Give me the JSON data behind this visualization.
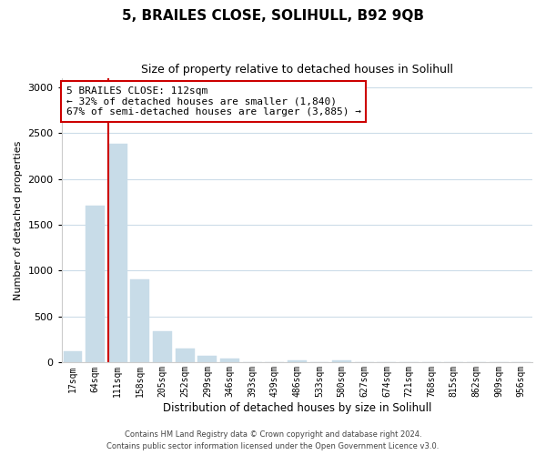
{
  "title": "5, BRAILES CLOSE, SOLIHULL, B92 9QB",
  "subtitle": "Size of property relative to detached houses in Solihull",
  "xlabel": "Distribution of detached houses by size in Solihull",
  "ylabel": "Number of detached properties",
  "bar_labels": [
    "17sqm",
    "64sqm",
    "111sqm",
    "158sqm",
    "205sqm",
    "252sqm",
    "299sqm",
    "346sqm",
    "393sqm",
    "439sqm",
    "486sqm",
    "533sqm",
    "580sqm",
    "627sqm",
    "674sqm",
    "721sqm",
    "768sqm",
    "815sqm",
    "862sqm",
    "909sqm",
    "956sqm"
  ],
  "bar_values": [
    120,
    1710,
    2380,
    910,
    340,
    155,
    70,
    40,
    0,
    0,
    25,
    0,
    20,
    0,
    0,
    0,
    0,
    0,
    0,
    0,
    0
  ],
  "bar_color": "#c8dce8",
  "bar_edge_color": "#c8dce8",
  "property_line_index": 2,
  "property_line_color": "#cc0000",
  "annotation_text": "5 BRAILES CLOSE: 112sqm\n← 32% of detached houses are smaller (1,840)\n67% of semi-detached houses are larger (3,885) →",
  "annotation_box_color": "#ffffff",
  "annotation_box_edge": "#cc0000",
  "ylim": [
    0,
    3100
  ],
  "yticks": [
    0,
    500,
    1000,
    1500,
    2000,
    2500,
    3000
  ],
  "footer_line1": "Contains HM Land Registry data © Crown copyright and database right 2024.",
  "footer_line2": "Contains public sector information licensed under the Open Government Licence v3.0.",
  "background_color": "#ffffff",
  "grid_color": "#ccdce8"
}
